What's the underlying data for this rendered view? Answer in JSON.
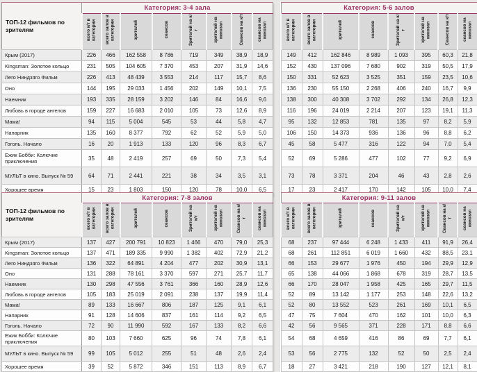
{
  "report": {
    "films_header": "ТОП-12 фильмов по зрителям",
    "columns": [
      "всего к/т в категории",
      "всего залов в категории",
      "зрителей",
      "сеансов",
      "Зрителей на к/т",
      "зрителей на кинозал",
      "Сеансов на к/т",
      "сеансов на кинозал"
    ],
    "films": [
      "Крым (2017)",
      "Kingsman: Золотое кольцо",
      "Лего Ниндзяго Фильм",
      "Оно",
      "Наемник",
      "Любовь в городе ангелов",
      "Мама!",
      "Напарник",
      "Гоголь. Начало",
      "Ежик Бобби: Колючие приключения",
      "МУЛЬТ в кино. Выпуск № 59",
      "Хорошее время"
    ],
    "tables": [
      {
        "title": "Категория: 3-4 зала",
        "rows": [
          [
            "226",
            "466",
            "162 558",
            "8 786",
            "719",
            "349",
            "38,9",
            "18,9"
          ],
          [
            "231",
            "505",
            "104 605",
            "7 370",
            "453",
            "207",
            "31,9",
            "14,6"
          ],
          [
            "226",
            "413",
            "48 439",
            "3 553",
            "214",
            "117",
            "15,7",
            "8,6"
          ],
          [
            "144",
            "195",
            "29 033",
            "1 456",
            "202",
            "149",
            "10,1",
            "7,5"
          ],
          [
            "193",
            "335",
            "28 159",
            "3 202",
            "146",
            "84",
            "16,6",
            "9,6"
          ],
          [
            "159",
            "227",
            "16 683",
            "2 010",
            "105",
            "73",
            "12,6",
            "8,9"
          ],
          [
            "94",
            "115",
            "5 004",
            "545",
            "53",
            "44",
            "5,8",
            "4,7"
          ],
          [
            "135",
            "160",
            "8 377",
            "792",
            "62",
            "52",
            "5,9",
            "5,0"
          ],
          [
            "16",
            "20",
            "1 913",
            "133",
            "120",
            "96",
            "8,3",
            "6,7"
          ],
          [
            "35",
            "48",
            "2 419",
            "257",
            "69",
            "50",
            "7,3",
            "5,4"
          ],
          [
            "64",
            "71",
            "2 441",
            "221",
            "38",
            "34",
            "3,5",
            "3,1"
          ],
          [
            "15",
            "23",
            "1 803",
            "150",
            "120",
            "78",
            "10,0",
            "6,5"
          ]
        ]
      },
      {
        "title": "Категория: 5-6 залов",
        "rows": [
          [
            "149",
            "412",
            "162 846",
            "8 989",
            "1 093",
            "395",
            "60,3",
            "21,8"
          ],
          [
            "152",
            "430",
            "137 096",
            "7 680",
            "902",
            "319",
            "50,5",
            "17,9"
          ],
          [
            "150",
            "331",
            "52 623",
            "3 525",
            "351",
            "159",
            "23,5",
            "10,6"
          ],
          [
            "136",
            "230",
            "55 150",
            "2 268",
            "406",
            "240",
            "16,7",
            "9,9"
          ],
          [
            "138",
            "300",
            "40 308",
            "3 702",
            "292",
            "134",
            "26,8",
            "12,3"
          ],
          [
            "116",
            "196",
            "24 019",
            "2 214",
            "207",
            "123",
            "19,1",
            "11,3"
          ],
          [
            "95",
            "132",
            "12 853",
            "781",
            "135",
            "97",
            "8,2",
            "5,9"
          ],
          [
            "106",
            "150",
            "14 373",
            "936",
            "136",
            "96",
            "8,8",
            "6,2"
          ],
          [
            "45",
            "58",
            "5 477",
            "316",
            "122",
            "94",
            "7,0",
            "5,4"
          ],
          [
            "52",
            "69",
            "5 286",
            "477",
            "102",
            "77",
            "9,2",
            "6,9"
          ],
          [
            "73",
            "78",
            "3 371",
            "204",
            "46",
            "43",
            "2,8",
            "2,6"
          ],
          [
            "17",
            "23",
            "2 417",
            "170",
            "142",
            "105",
            "10,0",
            "7,4"
          ]
        ]
      },
      {
        "title": "Категория: 7-8 залов",
        "rows": [
          [
            "137",
            "427",
            "200 791",
            "10 823",
            "1 466",
            "470",
            "79,0",
            "25,3"
          ],
          [
            "137",
            "471",
            "189 335",
            "9 990",
            "1 382",
            "402",
            "72,9",
            "21,2"
          ],
          [
            "136",
            "322",
            "64 891",
            "4 204",
            "477",
            "202",
            "30,9",
            "13,1"
          ],
          [
            "131",
            "288",
            "78 161",
            "3 370",
            "597",
            "271",
            "25,7",
            "11,7"
          ],
          [
            "130",
            "298",
            "47 556",
            "3 761",
            "366",
            "160",
            "28,9",
            "12,6"
          ],
          [
            "105",
            "183",
            "25 019",
            "2 091",
            "238",
            "137",
            "19,9",
            "11,4"
          ],
          [
            "89",
            "133",
            "16 667",
            "806",
            "187",
            "125",
            "9,1",
            "6,1"
          ],
          [
            "91",
            "128",
            "14 606",
            "837",
            "161",
            "114",
            "9,2",
            "6,5"
          ],
          [
            "72",
            "90",
            "11 990",
            "592",
            "167",
            "133",
            "8,2",
            "6,6"
          ],
          [
            "80",
            "103",
            "7 660",
            "625",
            "96",
            "74",
            "7,8",
            "6,1"
          ],
          [
            "99",
            "105",
            "5 012",
            "255",
            "51",
            "48",
            "2,6",
            "2,4"
          ],
          [
            "39",
            "52",
            "5 872",
            "346",
            "151",
            "113",
            "8,9",
            "6,7"
          ]
        ]
      },
      {
        "title": "Категория: 9-11 залов",
        "rows": [
          [
            "68",
            "237",
            "97 444",
            "6 248",
            "1 433",
            "411",
            "91,9",
            "26,4"
          ],
          [
            "68",
            "261",
            "112 851",
            "6 019",
            "1 660",
            "432",
            "88,5",
            "23,1"
          ],
          [
            "66",
            "153",
            "29 677",
            "1 976",
            "450",
            "194",
            "29,9",
            "12,9"
          ],
          [
            "65",
            "138",
            "44 066",
            "1 868",
            "678",
            "319",
            "28,7",
            "13,5"
          ],
          [
            "66",
            "170",
            "28 047",
            "1 958",
            "425",
            "165",
            "29,7",
            "11,5"
          ],
          [
            "52",
            "89",
            "13 142",
            "1 177",
            "253",
            "148",
            "22,6",
            "13,2"
          ],
          [
            "52",
            "80",
            "13 552",
            "523",
            "261",
            "169",
            "10,1",
            "6,5"
          ],
          [
            "47",
            "75",
            "7 604",
            "470",
            "162",
            "101",
            "10,0",
            "6,3"
          ],
          [
            "42",
            "56",
            "9 565",
            "371",
            "228",
            "171",
            "8,8",
            "6,6"
          ],
          [
            "54",
            "68",
            "4 659",
            "416",
            "86",
            "69",
            "7,7",
            "6,1"
          ],
          [
            "53",
            "56",
            "2 775",
            "132",
            "52",
            "50",
            "2,5",
            "2,4"
          ],
          [
            "18",
            "27",
            "3 421",
            "218",
            "190",
            "127",
            "12,1",
            "8,1"
          ]
        ]
      }
    ],
    "colors": {
      "title_text": "#993366",
      "header_bg": "#d9d9d9",
      "alt_row_bg": "#ececec",
      "page_bg": "#e8e7e5",
      "border": "#9a9a9a"
    }
  }
}
